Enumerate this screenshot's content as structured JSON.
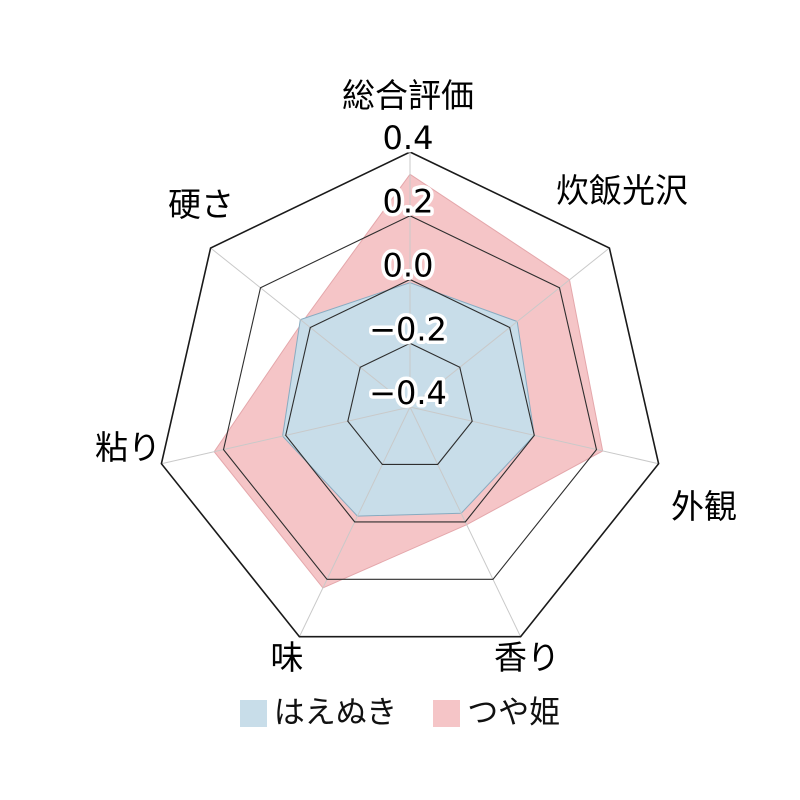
{
  "chart_data": {
    "type": "radar",
    "title": "",
    "categories": [
      "総合評価",
      "炊飯光沢",
      "外観",
      "香り",
      "味",
      "粘り",
      "硬さ"
    ],
    "series": [
      {
        "name": "はえぬき",
        "color": "#c8dde9",
        "edge_color": "#88abc0",
        "values": [
          -0.01,
          0.03,
          0.0,
          -0.03,
          -0.02,
          0.01,
          0.04
        ]
      },
      {
        "name": "つや姫",
        "color": "#f5c5c7",
        "edge_color": "#e4a7ab",
        "values": [
          0.33,
          0.24,
          0.22,
          0.01,
          0.23,
          0.23,
          0.03
        ]
      }
    ],
    "ticks": [
      0.4,
      0.2,
      0.0,
      -0.2,
      -0.4
    ],
    "tick_labels": [
      "0.4",
      "0.2",
      "0.0",
      "−0.2",
      "−0.4"
    ],
    "rmin": -0.4,
    "rmax": 0.4,
    "grid": true,
    "grid_color": "#2e2e2e",
    "spoke_color": "#c9c9c9",
    "legend_position": "bottom"
  },
  "legend": {
    "items": [
      {
        "label": "はえぬき",
        "color": "#c8dde9"
      },
      {
        "label": "つや姫",
        "color": "#f5c5c7"
      }
    ]
  }
}
